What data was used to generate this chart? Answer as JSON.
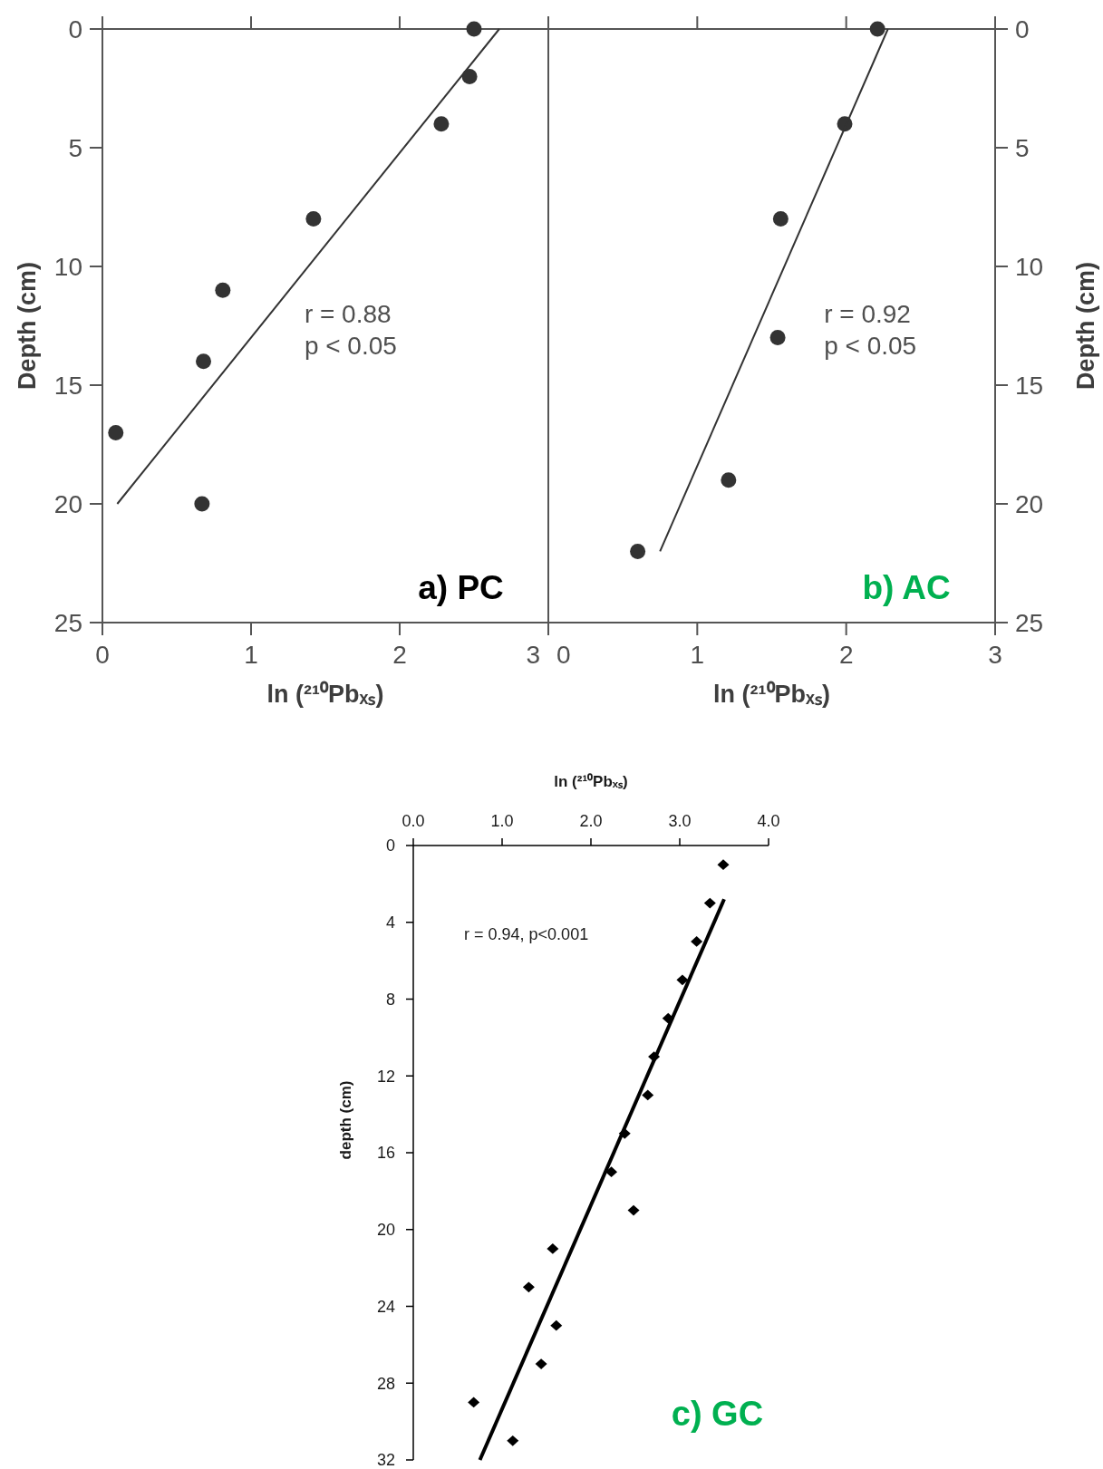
{
  "chart_data": [
    {
      "type": "scatter",
      "title": "a) PC",
      "xlabel": "ln (²¹⁰Pbₓₛ)",
      "ylabel": "Depth (cm)",
      "xlim": [
        0,
        3
      ],
      "xticks": [
        0,
        1,
        2,
        3
      ],
      "ylim": [
        25,
        0
      ],
      "yticks": [
        0,
        5,
        10,
        15,
        20,
        25
      ],
      "annotations": [
        "r = 0.88",
        "p < 0.05"
      ],
      "series": [
        {
          "color": "#333333",
          "marker": "circle",
          "x": [
            2.5,
            2.47,
            2.28,
            1.42,
            0.81,
            0.68,
            0.09,
            0.67
          ],
          "values": [
            0,
            2,
            4,
            8,
            11,
            14,
            17,
            20
          ]
        },
        {
          "type": "line",
          "color": "#333333",
          "x": [
            0.1,
            2.67
          ],
          "values": [
            20,
            0
          ]
        }
      ]
    },
    {
      "type": "scatter",
      "title": "b) AC",
      "xlabel": "ln (²¹⁰Pbₓₛ)",
      "y2label": "Depth (cm)",
      "xlim": [
        0,
        3
      ],
      "xticks": [
        0,
        1,
        2,
        3
      ],
      "y2lim": [
        25,
        0
      ],
      "y2ticks": [
        0,
        5,
        10,
        15,
        20,
        25
      ],
      "annotations": [
        "r = 0.92",
        "p < 0.05"
      ],
      "series": [
        {
          "color": "#333333",
          "marker": "circle",
          "axis": "y2",
          "x": [
            2.21,
            1.99,
            1.56,
            1.54,
            1.21,
            0.6
          ],
          "values": [
            0,
            4,
            8,
            13,
            19,
            22
          ]
        },
        {
          "type": "line",
          "color": "#333333",
          "axis": "y2",
          "x": [
            0.75,
            2.28
          ],
          "values": [
            22,
            0
          ]
        }
      ]
    },
    {
      "type": "scatter",
      "title": "c) GC",
      "xlabel": "ln (²¹⁰Pbₓₛ)",
      "ylabel": "depth (cm)",
      "xlim": [
        0,
        4
      ],
      "xticks": [
        {
          "value": 0,
          "label": "0.0"
        },
        {
          "value": 1,
          "label": "1.0"
        },
        {
          "value": 2,
          "label": "2.0"
        },
        {
          "value": 3,
          "label": "3.0"
        },
        {
          "value": 4,
          "label": "4.0"
        }
      ],
      "ylim": [
        32,
        0
      ],
      "yticks": [
        0,
        4,
        8,
        12,
        16,
        20,
        24,
        28,
        32
      ],
      "annotations": [
        "r = 0.94, p<0.001"
      ],
      "series": [
        {
          "color": "#000000",
          "marker": "diamond",
          "x": [
            3.49,
            3.34,
            3.19,
            3.03,
            2.87,
            2.71,
            2.64,
            2.38,
            2.23,
            2.48,
            1.57,
            1.3,
            1.61,
            1.44,
            0.68,
            1.12
          ],
          "values": [
            1,
            3,
            5,
            7,
            9,
            11,
            13,
            15,
            17,
            19,
            21,
            23,
            25,
            27,
            29,
            31
          ]
        },
        {
          "type": "line",
          "color": "#000000",
          "x": [
            3.5,
            0.75
          ],
          "values": [
            2.8,
            32
          ]
        }
      ]
    }
  ]
}
